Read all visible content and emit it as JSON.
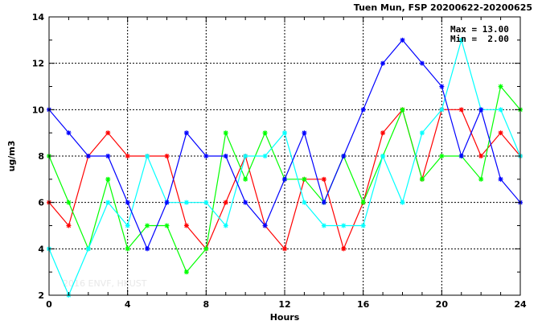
{
  "chart_data": {
    "type": "line",
    "title": "Tuen Mun, FSP 20200622-20200625",
    "xlabel": "Hours",
    "ylabel": "ug/m3",
    "xlim": [
      0,
      24
    ],
    "ylim": [
      2,
      14
    ],
    "xticks": [
      0,
      4,
      8,
      12,
      16,
      20,
      24
    ],
    "yticks": [
      2,
      4,
      6,
      8,
      10,
      12,
      14
    ],
    "grid": true,
    "annotations": {
      "max": "Max = 13.00",
      "min": "Min =  2.00"
    },
    "watermark": "2016 ENVF, HKUST",
    "x": [
      0,
      1,
      2,
      3,
      4,
      5,
      6,
      7,
      8,
      9,
      10,
      11,
      12,
      13,
      14,
      15,
      16,
      17,
      18,
      19,
      20,
      21,
      22,
      23,
      24
    ],
    "series": [
      {
        "color": "#ff0000",
        "values": [
          6,
          5,
          8,
          9,
          8,
          8,
          8,
          5,
          4,
          6,
          8,
          5,
          4,
          7,
          7,
          4,
          6,
          9,
          10,
          7,
          10,
          10,
          8,
          9,
          8
        ]
      },
      {
        "color": "#00ff00",
        "values": [
          8,
          6,
          4,
          7,
          4,
          5,
          5,
          3,
          4,
          9,
          7,
          9,
          7,
          7,
          6,
          8,
          6,
          8,
          10,
          7,
          8,
          8,
          7,
          11,
          10
        ]
      },
      {
        "color": "#00ffff",
        "values": [
          4,
          2,
          4,
          6,
          5,
          8,
          6,
          6,
          6,
          5,
          8,
          8,
          9,
          6,
          5,
          5,
          5,
          8,
          6,
          9,
          10,
          13,
          10,
          10,
          8
        ]
      },
      {
        "color": "#0000ff",
        "values": [
          10,
          9,
          8,
          8,
          6,
          4,
          6,
          9,
          8,
          8,
          6,
          5,
          7,
          9,
          6,
          8,
          10,
          12,
          13,
          12,
          11,
          8,
          10,
          7,
          6
        ]
      }
    ]
  }
}
